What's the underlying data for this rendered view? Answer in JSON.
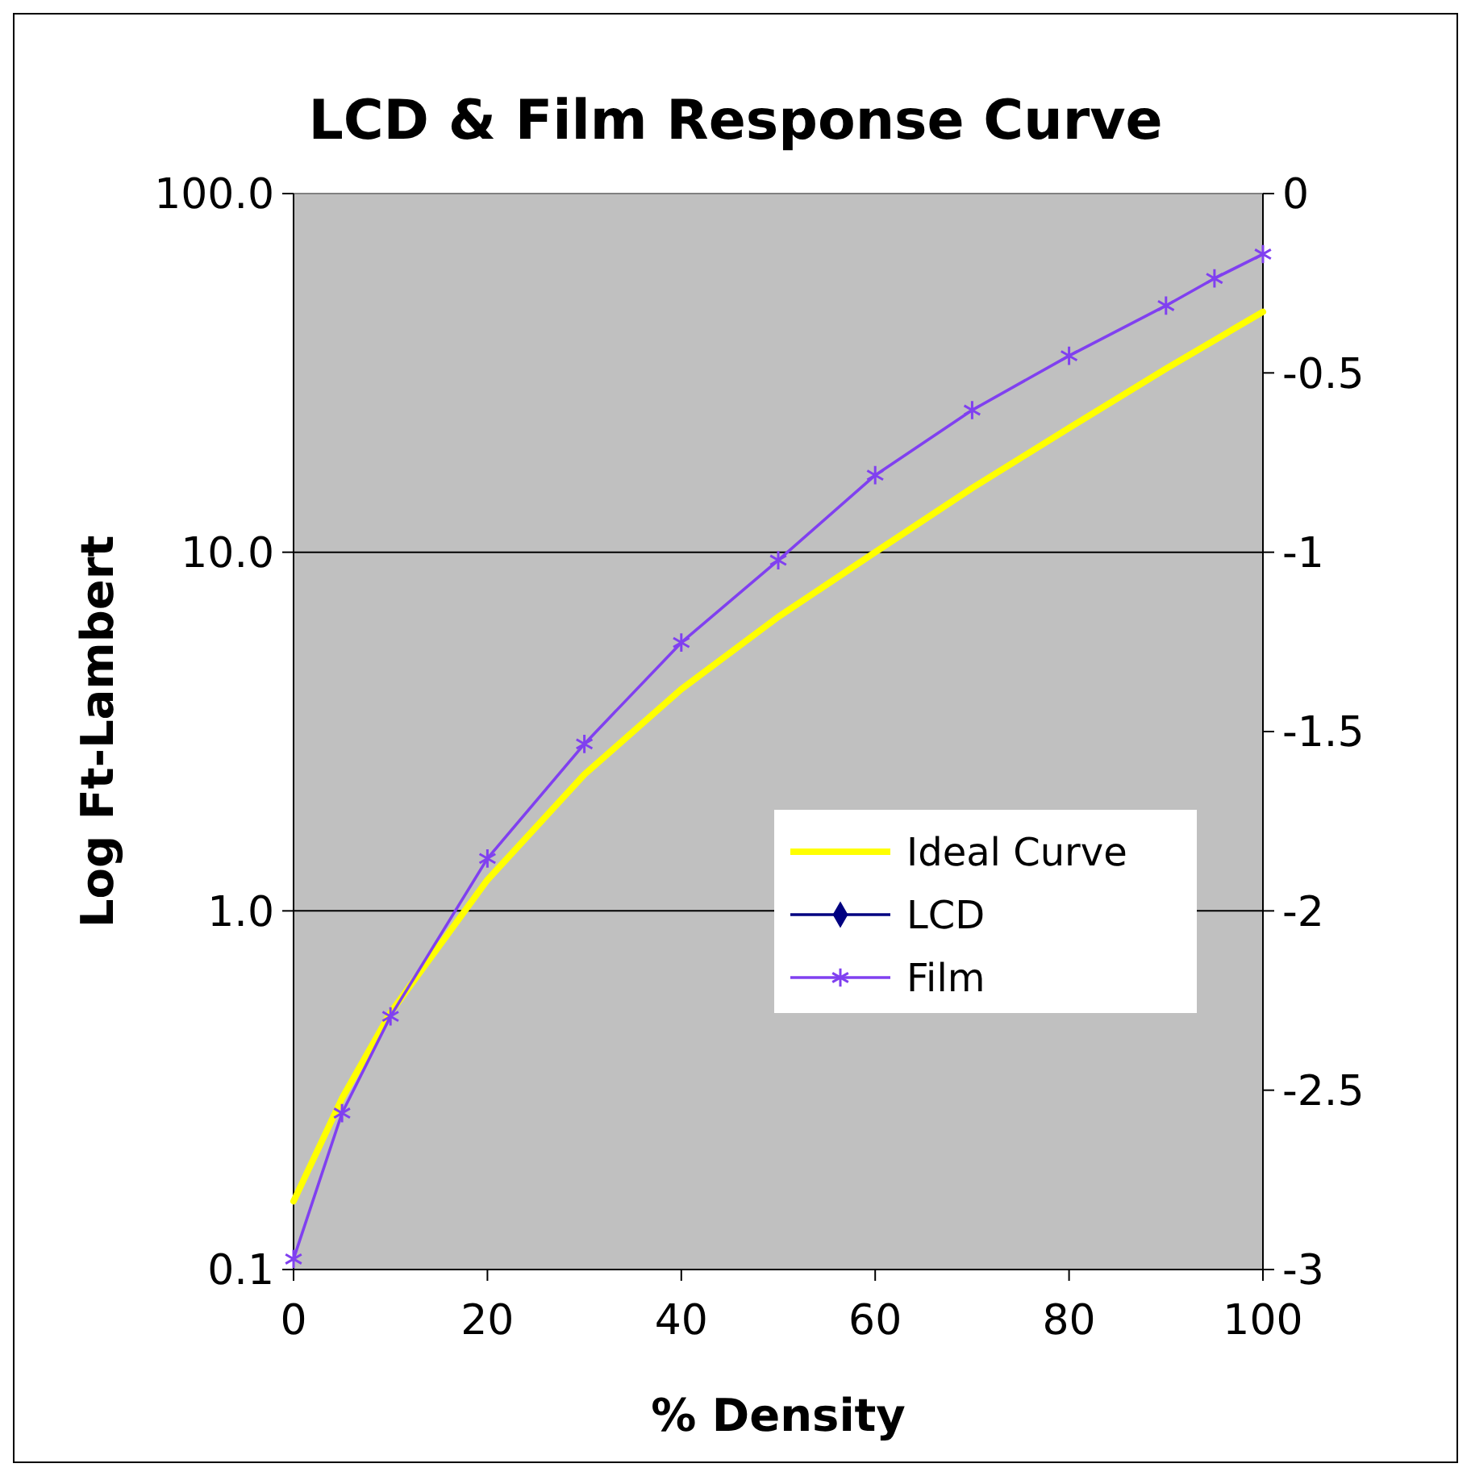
{
  "chart_data": {
    "type": "line",
    "title": "LCD & Film Response Curve",
    "xlabel": "% Density",
    "ylabel": "Log Ft-Lambert",
    "log": "y",
    "xlim": [
      0,
      100
    ],
    "xticks": [
      0,
      20,
      40,
      60,
      80,
      100
    ],
    "ylim": [
      0.1,
      100
    ],
    "yticks": [
      {
        "value": 0.1,
        "label": "0.1"
      },
      {
        "value": 1,
        "label": "1.0"
      },
      {
        "value": 10,
        "label": "10.0"
      },
      {
        "value": 100,
        "label": "100.0"
      }
    ],
    "y2lim": [
      -3,
      0
    ],
    "y2ticks": [
      -3,
      -2.5,
      -2,
      -1.5,
      -1,
      -0.5,
      0
    ],
    "grid": "y",
    "legend": "right",
    "line_style": "solid",
    "series": [
      {
        "name": "Ideal Curve",
        "color": "#ffff00",
        "marker": "none",
        "x": [
          0,
          5,
          10,
          20,
          30,
          40,
          50,
          60,
          70,
          80,
          90,
          100
        ],
        "values": [
          0.155,
          0.3,
          0.52,
          1.22,
          2.4,
          4.15,
          6.6,
          10,
          15.1,
          22.2,
          32.5,
          46.8
        ]
      },
      {
        "name": "LCD",
        "color": "#000080",
        "marker": "diamond"
      },
      {
        "name": "Film",
        "color": "#8040f0",
        "marker": "cross",
        "x": [
          0,
          5,
          10,
          20,
          30,
          40,
          50,
          60,
          70,
          80,
          90,
          95,
          100
        ],
        "values": [
          0.107,
          0.273,
          0.508,
          1.4,
          2.92,
          5.6,
          9.5,
          16.4,
          24.9,
          35.3,
          48.7,
          58,
          67.8
        ]
      }
    ]
  }
}
